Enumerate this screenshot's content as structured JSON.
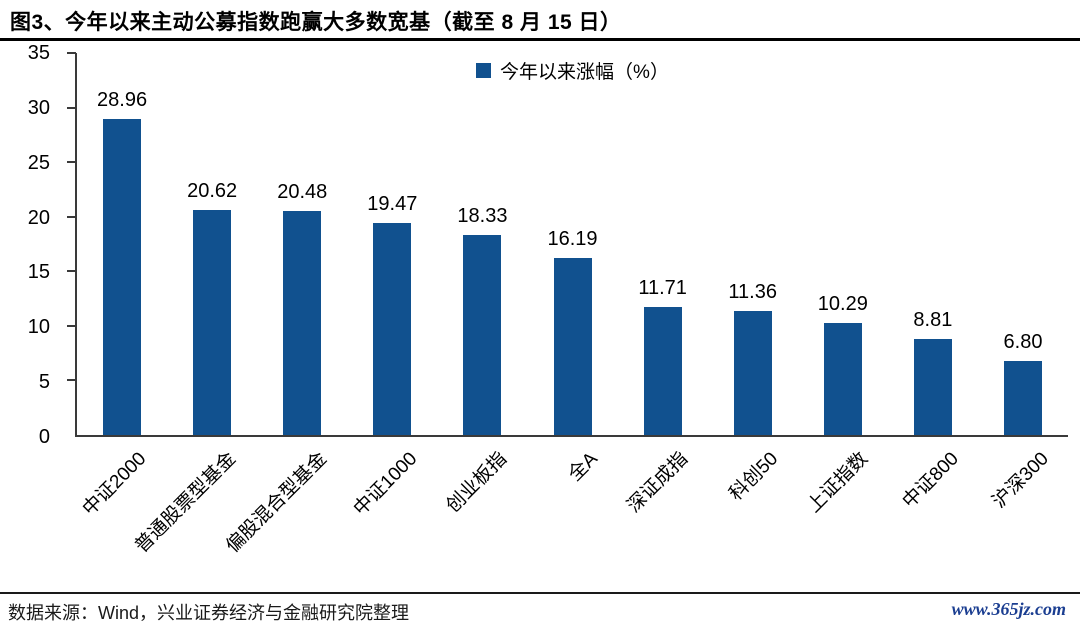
{
  "page": {
    "title": "图3、今年以来主动公募指数跑赢大多数宽基（截至 8 月 15 日）",
    "footer_source": "数据来源：Wind，兴业证券经济与金融研究院整理",
    "watermark": "www.365jz.com"
  },
  "colors": {
    "bar": "#11518F",
    "axis": "#3A3A3A",
    "watermark": "#1B3E91",
    "text": "#000000"
  },
  "chart_data": {
    "type": "bar",
    "title": "图3、今年以来主动公募指数跑赢大多数宽基（截至 8 月 15 日）",
    "legend": "今年以来涨幅（%）",
    "legend_position": "top-center",
    "categories": [
      "中证2000",
      "普通股票型基金",
      "偏股混合型基金",
      "中证1000",
      "创业板指",
      "全A",
      "深证成指",
      "科创50",
      "上证指数",
      "中证800",
      "沪深300"
    ],
    "values": [
      28.96,
      20.62,
      20.48,
      19.47,
      18.33,
      16.19,
      11.71,
      11.36,
      10.29,
      8.81,
      6.8
    ],
    "value_labels": [
      "28.96",
      "20.62",
      "20.48",
      "19.47",
      "18.33",
      "16.19",
      "11.71",
      "11.36",
      "10.29",
      "8.81",
      "6.80"
    ],
    "xlabel": "",
    "ylabel": "",
    "ylim": [
      0,
      35
    ],
    "yticks": [
      0,
      5,
      10,
      15,
      20,
      25,
      30,
      35
    ],
    "grid": false,
    "bar_color": "#11518F"
  }
}
